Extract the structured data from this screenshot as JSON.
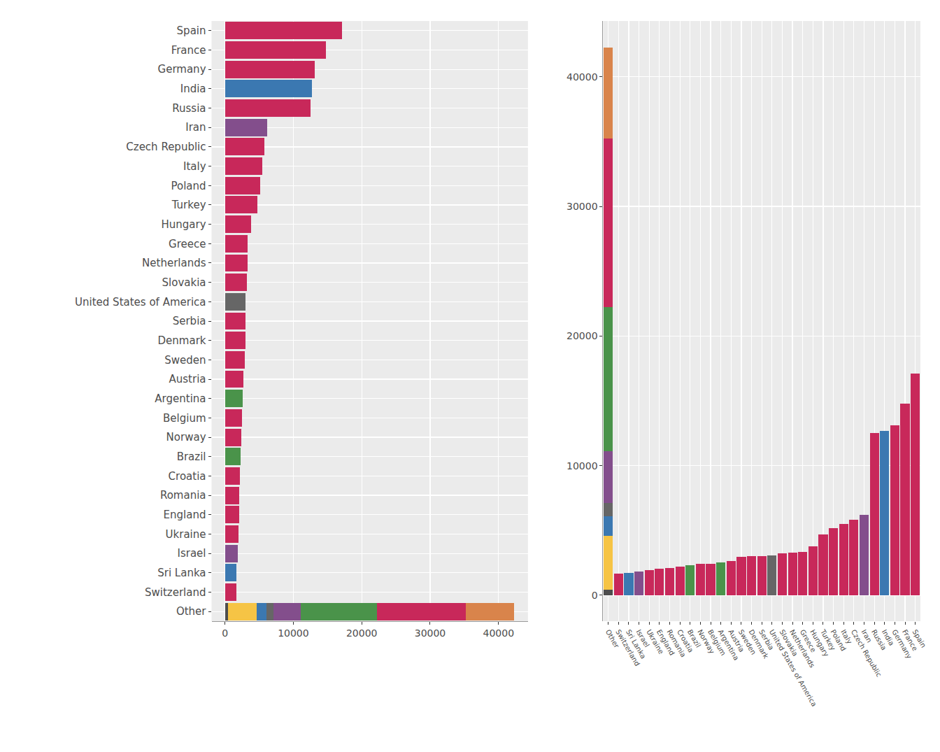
{
  "chart_data": [
    {
      "type": "bar",
      "orientation": "horizontal",
      "stacked": true,
      "grid": true,
      "categories": [
        "Spain",
        "France",
        "Germany",
        "India",
        "Russia",
        "Iran",
        "Czech Republic",
        "Italy",
        "Poland",
        "Turkey",
        "Hungary",
        "Greece",
        "Netherlands",
        "Slovakia",
        "United States of America",
        "Serbia",
        "Denmark",
        "Sweden",
        "Austria",
        "Argentina",
        "Belgium",
        "Norway",
        "Brazil",
        "Croatia",
        "Romania",
        "England",
        "Ukraine",
        "Israel",
        "Sri Lanka",
        "Switzerland",
        "Other"
      ],
      "series": [
        {
          "color": "#4d4d4d",
          "values": [
            null,
            null,
            null,
            null,
            null,
            null,
            null,
            null,
            null,
            null,
            null,
            null,
            null,
            null,
            null,
            null,
            null,
            null,
            null,
            null,
            null,
            null,
            null,
            null,
            null,
            null,
            null,
            null,
            null,
            null,
            450
          ]
        },
        {
          "color": "#f6c445",
          "values": [
            null,
            null,
            null,
            null,
            null,
            null,
            null,
            null,
            null,
            null,
            null,
            null,
            null,
            null,
            null,
            null,
            null,
            null,
            null,
            null,
            null,
            null,
            null,
            null,
            null,
            null,
            null,
            null,
            null,
            null,
            4150
          ]
        },
        {
          "color": "#3b78b1",
          "values": [
            null,
            null,
            null,
            12700,
            null,
            null,
            null,
            null,
            null,
            null,
            null,
            null,
            null,
            null,
            null,
            null,
            null,
            null,
            null,
            null,
            null,
            null,
            null,
            null,
            null,
            null,
            null,
            null,
            1700,
            null,
            1500
          ]
        },
        {
          "color": "#666666",
          "values": [
            null,
            null,
            null,
            null,
            null,
            null,
            null,
            null,
            null,
            null,
            null,
            null,
            null,
            null,
            3050,
            null,
            null,
            null,
            null,
            null,
            null,
            null,
            null,
            null,
            null,
            null,
            null,
            null,
            null,
            null,
            1000
          ]
        },
        {
          "color": "#834e8c",
          "values": [
            null,
            null,
            null,
            null,
            null,
            6200,
            null,
            null,
            null,
            null,
            null,
            null,
            null,
            null,
            null,
            null,
            null,
            null,
            null,
            null,
            null,
            null,
            null,
            null,
            null,
            null,
            null,
            1850,
            null,
            null,
            4000
          ]
        },
        {
          "color": "#4a934a",
          "values": [
            null,
            null,
            null,
            null,
            null,
            null,
            null,
            null,
            null,
            null,
            null,
            null,
            null,
            null,
            null,
            null,
            null,
            null,
            null,
            2550,
            null,
            null,
            2300,
            null,
            null,
            null,
            null,
            null,
            null,
            null,
            11150
          ]
        },
        {
          "color": "#c8285a",
          "values": [
            17100,
            14800,
            13100,
            null,
            12500,
            null,
            5800,
            5500,
            5200,
            4700,
            3800,
            3350,
            3300,
            3250,
            null,
            3000,
            3000,
            2950,
            2650,
            null,
            2450,
            2400,
            null,
            2200,
            2100,
            2050,
            1950,
            null,
            null,
            1650,
            13000
          ]
        },
        {
          "color": "#d9844b",
          "values": [
            null,
            null,
            null,
            null,
            null,
            null,
            null,
            null,
            null,
            null,
            null,
            null,
            null,
            null,
            null,
            null,
            null,
            null,
            null,
            null,
            null,
            null,
            null,
            null,
            null,
            null,
            null,
            null,
            null,
            null,
            7000
          ]
        }
      ],
      "xlim": [
        -1950,
        44300
      ],
      "xticks": [
        0,
        10000,
        20000,
        30000,
        40000
      ]
    },
    {
      "type": "bar",
      "stacked": true,
      "grid": true,
      "categories": [
        "Other",
        "Switzerland",
        "Sri Lanka",
        "Israel",
        "Ukraine",
        "England",
        "Romania",
        "Croatia",
        "Brazil",
        "Norway",
        "Belgium",
        "Argentina",
        "Austria",
        "Sweden",
        "Denmark",
        "Serbia",
        "United States of America",
        "Slovakia",
        "Netherlands",
        "Greece",
        "Hungary",
        "Turkey",
        "Poland",
        "Italy",
        "Czech Republic",
        "Iran",
        "Russia",
        "India",
        "Germany",
        "France",
        "Spain"
      ],
      "series": [
        {
          "color": "#4d4d4d",
          "values": [
            450,
            null,
            null,
            null,
            null,
            null,
            null,
            null,
            null,
            null,
            null,
            null,
            null,
            null,
            null,
            null,
            null,
            null,
            null,
            null,
            null,
            null,
            null,
            null,
            null,
            null,
            null,
            null,
            null,
            null,
            null
          ]
        },
        {
          "color": "#f6c445",
          "values": [
            4150,
            null,
            null,
            null,
            null,
            null,
            null,
            null,
            null,
            null,
            null,
            null,
            null,
            null,
            null,
            null,
            null,
            null,
            null,
            null,
            null,
            null,
            null,
            null,
            null,
            null,
            null,
            null,
            null,
            null,
            null
          ]
        },
        {
          "color": "#3b78b1",
          "values": [
            1500,
            null,
            1700,
            null,
            null,
            null,
            null,
            null,
            null,
            null,
            null,
            null,
            null,
            null,
            null,
            null,
            null,
            null,
            null,
            null,
            null,
            null,
            null,
            null,
            null,
            null,
            null,
            12700,
            null,
            null,
            null
          ]
        },
        {
          "color": "#666666",
          "values": [
            1000,
            null,
            null,
            null,
            null,
            null,
            null,
            null,
            null,
            null,
            null,
            null,
            null,
            null,
            null,
            null,
            3050,
            null,
            null,
            null,
            null,
            null,
            null,
            null,
            null,
            null,
            null,
            null,
            null,
            null,
            null
          ]
        },
        {
          "color": "#834e8c",
          "values": [
            4000,
            null,
            null,
            1850,
            null,
            null,
            null,
            null,
            null,
            null,
            null,
            null,
            null,
            null,
            null,
            null,
            null,
            null,
            null,
            null,
            null,
            null,
            null,
            null,
            null,
            6200,
            null,
            null,
            null,
            null,
            null
          ]
        },
        {
          "color": "#4a934a",
          "values": [
            11150,
            null,
            null,
            null,
            null,
            null,
            null,
            null,
            2300,
            null,
            null,
            2550,
            null,
            null,
            null,
            null,
            null,
            null,
            null,
            null,
            null,
            null,
            null,
            null,
            null,
            null,
            null,
            null,
            null,
            null,
            null
          ]
        },
        {
          "color": "#c8285a",
          "values": [
            13000,
            1650,
            null,
            null,
            1950,
            2050,
            2100,
            2200,
            null,
            2400,
            2450,
            null,
            2650,
            2950,
            3000,
            3000,
            null,
            3250,
            3300,
            3350,
            3800,
            4700,
            5200,
            5500,
            5800,
            null,
            12500,
            null,
            13100,
            14800,
            17100
          ]
        },
        {
          "color": "#d9844b",
          "values": [
            7000,
            null,
            null,
            null,
            null,
            null,
            null,
            null,
            null,
            null,
            null,
            null,
            null,
            null,
            null,
            null,
            null,
            null,
            null,
            null,
            null,
            null,
            null,
            null,
            null,
            null,
            null,
            null,
            null,
            null,
            null
          ]
        }
      ],
      "ylim": [
        -2000,
        44300
      ],
      "yticks": [
        0,
        10000,
        20000,
        30000,
        40000
      ]
    }
  ]
}
